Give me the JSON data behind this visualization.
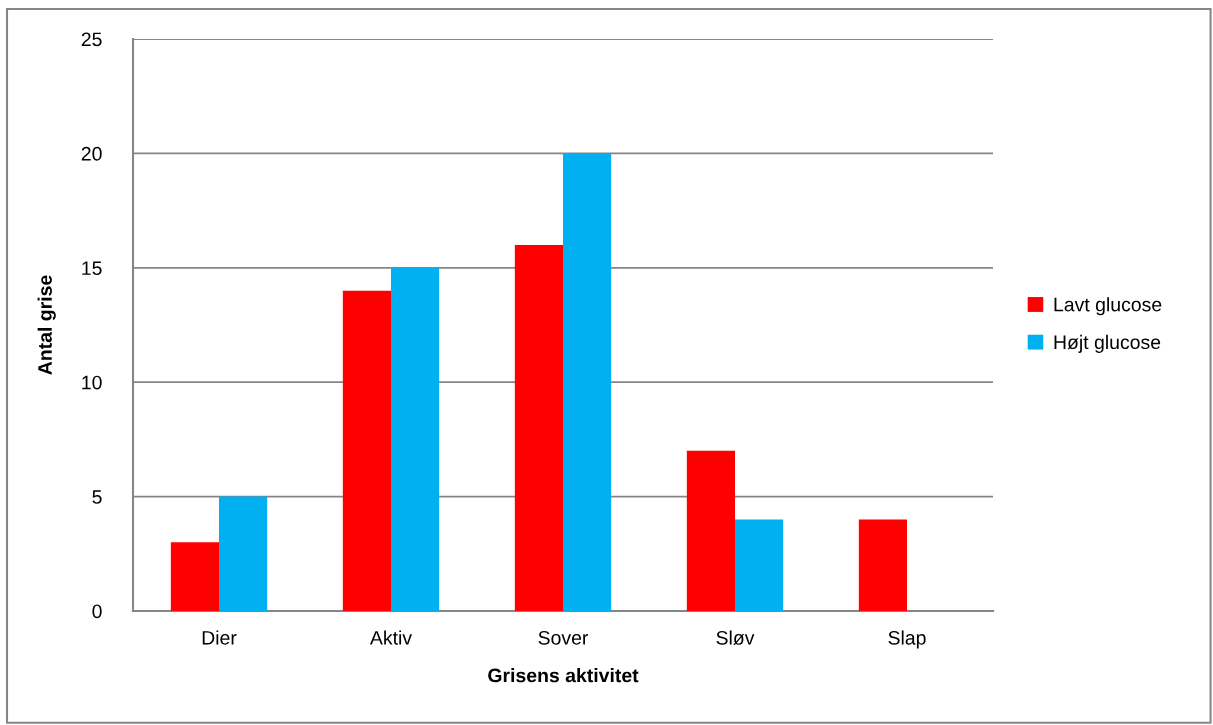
{
  "chart_data": {
    "type": "bar",
    "xlabel": "Grisens aktivitet",
    "ylabel": "Antal grise",
    "categories": [
      "Dier",
      "Aktiv",
      "Sover",
      "Sløv",
      "Slap"
    ],
    "series": [
      {
        "name": "Lavt glucose",
        "color": "#ff0000",
        "values": [
          3,
          14,
          16,
          7,
          4
        ]
      },
      {
        "name": "Højt glucose",
        "color": "#00b0f0",
        "values": [
          5,
          15,
          20,
          4,
          0
        ]
      }
    ],
    "ylim": [
      0,
      25
    ],
    "yticks": [
      0,
      5,
      10,
      15,
      20,
      25
    ],
    "grid": "y",
    "legend": "right"
  }
}
